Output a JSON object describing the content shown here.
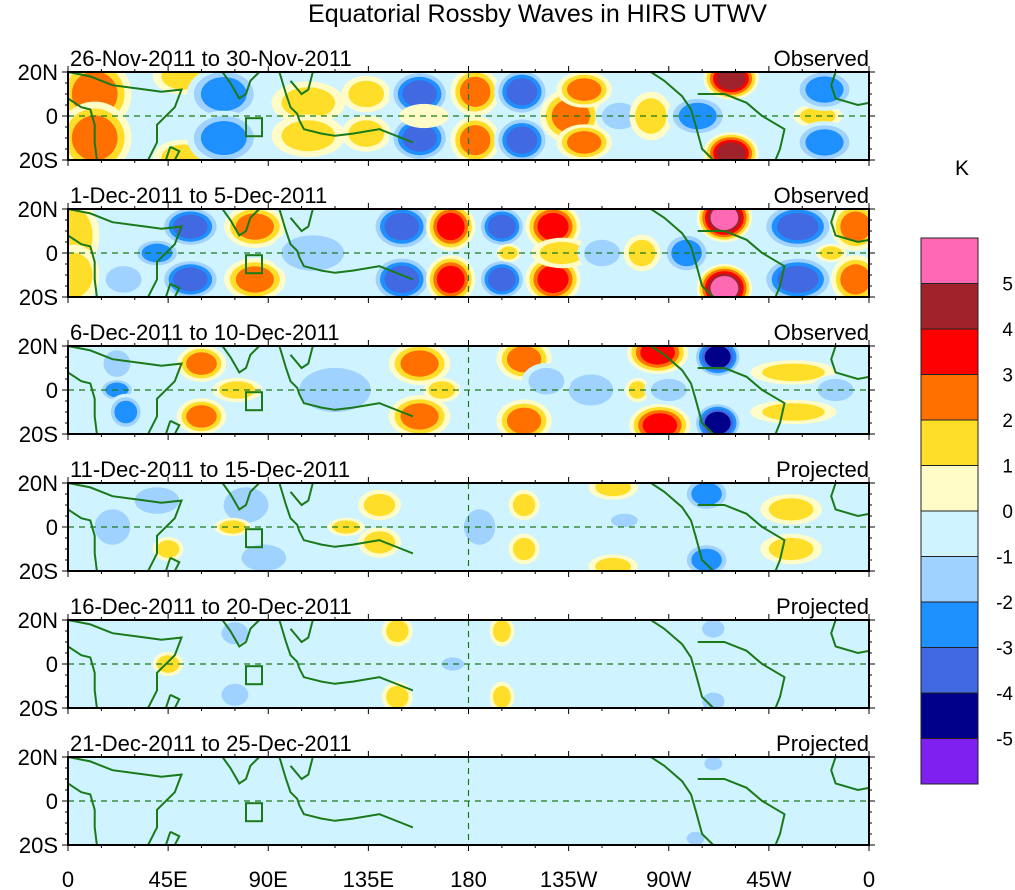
{
  "chart_data": {
    "type": "heatmap",
    "title": "Equatorial Rossby Waves in HIRS UTWV",
    "xlabel": "",
    "ylabel": "",
    "x_tick_labels": [
      "0",
      "45E",
      "90E",
      "135E",
      "180",
      "135W",
      "90W",
      "45W",
      "0"
    ],
    "x_tick_values_deg": [
      0,
      45,
      90,
      135,
      180,
      225,
      270,
      315,
      360
    ],
    "y_tick_labels": [
      "20N",
      "0",
      "20S"
    ],
    "y_tick_values_deg": [
      20,
      0,
      -20
    ],
    "xlim_deg": [
      0,
      360
    ],
    "ylim_deg": [
      -20,
      20
    ],
    "colorbar": {
      "unit": "K",
      "tick_labels": [
        "5",
        "4",
        "3",
        "2",
        "1",
        "0",
        "-1",
        "-2",
        "-3",
        "-4",
        "-5"
      ],
      "levels": [
        5,
        4,
        3,
        2,
        1,
        0,
        -1,
        -2,
        -3,
        -4,
        -5
      ],
      "colors": [
        "#ff69b4",
        "#a0222a",
        "#ff0000",
        "#ff7000",
        "#ffde2a",
        "#fffcc8",
        "#d0f4ff",
        "#a0d2ff",
        "#1e90ff",
        "#4169e1",
        "#00008b",
        "#8020f0"
      ]
    },
    "panels": [
      {
        "period": "26-Nov-2011 to 30-Nov-2011",
        "status": "Observed",
        "anomalies": [
          {
            "lon": 12,
            "lat": 10,
            "value": 2.2,
            "w": 12,
            "h": 12
          },
          {
            "lon": 12,
            "lat": -10,
            "value": 2.2,
            "w": 12,
            "h": 12
          },
          {
            "lon": 52,
            "lat": 18,
            "value": 2.0,
            "w": 10,
            "h": 6
          },
          {
            "lon": 52,
            "lat": -19,
            "value": 2.0,
            "w": 10,
            "h": 6
          },
          {
            "lon": 70,
            "lat": 10,
            "value": -2.6,
            "w": 12,
            "h": 9
          },
          {
            "lon": 70,
            "lat": -10,
            "value": -2.6,
            "w": 12,
            "h": 9
          },
          {
            "lon": 108,
            "lat": 6,
            "value": 1.4,
            "w": 12,
            "h": 7
          },
          {
            "lon": 108,
            "lat": -9,
            "value": 1.5,
            "w": 12,
            "h": 7
          },
          {
            "lon": 134,
            "lat": 10,
            "value": 1.2,
            "w": 8,
            "h": 6
          },
          {
            "lon": 134,
            "lat": -8,
            "value": 1.2,
            "w": 8,
            "h": 6
          },
          {
            "lon": 158,
            "lat": 10,
            "value": -3.2,
            "w": 10,
            "h": 8
          },
          {
            "lon": 158,
            "lat": -10,
            "value": -3.2,
            "w": 10,
            "h": 8
          },
          {
            "lon": 160,
            "lat": 0,
            "value": 1.0,
            "w": 8,
            "h": 4
          },
          {
            "lon": 183,
            "lat": 11,
            "value": 2.2,
            "w": 8,
            "h": 8
          },
          {
            "lon": 183,
            "lat": -11,
            "value": 2.2,
            "w": 8,
            "h": 8
          },
          {
            "lon": 204,
            "lat": 11,
            "value": -3.1,
            "w": 9,
            "h": 8
          },
          {
            "lon": 204,
            "lat": -11,
            "value": -3.1,
            "w": 9,
            "h": 8
          },
          {
            "lon": 226,
            "lat": 0,
            "value": 2.4,
            "w": 10,
            "h": 9
          },
          {
            "lon": 232,
            "lat": 12,
            "value": 2.1,
            "w": 9,
            "h": 6
          },
          {
            "lon": 232,
            "lat": -12,
            "value": 2.1,
            "w": 9,
            "h": 6
          },
          {
            "lon": 248,
            "lat": 0,
            "value": -1.6,
            "w": 8,
            "h": 6
          },
          {
            "lon": 262,
            "lat": 0,
            "value": 1.4,
            "w": 7,
            "h": 8
          },
          {
            "lon": 283,
            "lat": 0,
            "value": -2.1,
            "w": 10,
            "h": 7
          },
          {
            "lon": 298,
            "lat": 17,
            "value": 4.3,
            "w": 9,
            "h": 7
          },
          {
            "lon": 298,
            "lat": -17,
            "value": 4.3,
            "w": 9,
            "h": 7
          },
          {
            "lon": 337,
            "lat": 0,
            "value": 1.3,
            "w": 8,
            "h": 4
          },
          {
            "lon": 340,
            "lat": 12,
            "value": -2.4,
            "w": 10,
            "h": 7
          },
          {
            "lon": 340,
            "lat": -12,
            "value": -2.4,
            "w": 10,
            "h": 7
          }
        ]
      },
      {
        "period": "1-Dec-2011 to 5-Dec-2011",
        "status": "Observed",
        "anomalies": [
          {
            "lon": 3,
            "lat": 8,
            "value": 1.6,
            "w": 8,
            "h": 12
          },
          {
            "lon": 3,
            "lat": -10,
            "value": 1.6,
            "w": 8,
            "h": 10
          },
          {
            "lon": 25,
            "lat": -12,
            "value": -1.5,
            "w": 8,
            "h": 6
          },
          {
            "lon": 40,
            "lat": 0,
            "value": -2.2,
            "w": 8,
            "h": 5
          },
          {
            "lon": 55,
            "lat": 12,
            "value": -3.2,
            "w": 10,
            "h": 7
          },
          {
            "lon": 55,
            "lat": -12,
            "value": -3.2,
            "w": 10,
            "h": 7
          },
          {
            "lon": 84,
            "lat": 12,
            "value": 2.3,
            "w": 10,
            "h": 7
          },
          {
            "lon": 84,
            "lat": -12,
            "value": 2.3,
            "w": 10,
            "h": 7
          },
          {
            "lon": 110,
            "lat": 0,
            "value": -1.3,
            "w": 14,
            "h": 8
          },
          {
            "lon": 150,
            "lat": 12,
            "value": -3.2,
            "w": 10,
            "h": 8
          },
          {
            "lon": 150,
            "lat": -12,
            "value": -3.3,
            "w": 10,
            "h": 8
          },
          {
            "lon": 172,
            "lat": 12,
            "value": 3.2,
            "w": 8,
            "h": 8
          },
          {
            "lon": 172,
            "lat": -12,
            "value": 3.2,
            "w": 8,
            "h": 8
          },
          {
            "lon": 195,
            "lat": 12,
            "value": -3.1,
            "w": 8,
            "h": 7
          },
          {
            "lon": 195,
            "lat": -12,
            "value": -3.1,
            "w": 8,
            "h": 7
          },
          {
            "lon": 198,
            "lat": 0,
            "value": 2.0,
            "w": 4,
            "h": 3
          },
          {
            "lon": 218,
            "lat": 12,
            "value": 3.2,
            "w": 9,
            "h": 8
          },
          {
            "lon": 218,
            "lat": -12,
            "value": 3.2,
            "w": 9,
            "h": 8
          },
          {
            "lon": 222,
            "lat": 0,
            "value": 1.4,
            "w": 10,
            "h": 5
          },
          {
            "lon": 240,
            "lat": 0,
            "value": -1.4,
            "w": 8,
            "h": 6
          },
          {
            "lon": 258,
            "lat": 0,
            "value": 1.5,
            "w": 6,
            "h": 6
          },
          {
            "lon": 278,
            "lat": 0,
            "value": -3.0,
            "w": 8,
            "h": 7
          },
          {
            "lon": 295,
            "lat": 16,
            "value": 5.2,
            "w": 9,
            "h": 8
          },
          {
            "lon": 295,
            "lat": -16,
            "value": 5.2,
            "w": 9,
            "h": 8
          },
          {
            "lon": 328,
            "lat": 12,
            "value": -3.2,
            "w": 12,
            "h": 8
          },
          {
            "lon": 328,
            "lat": -12,
            "value": -3.2,
            "w": 12,
            "h": 8
          },
          {
            "lon": 354,
            "lat": 12,
            "value": 2.5,
            "w": 8,
            "h": 8
          },
          {
            "lon": 354,
            "lat": -12,
            "value": 2.5,
            "w": 8,
            "h": 8
          },
          {
            "lon": 343,
            "lat": 0,
            "value": 1.3,
            "w": 5,
            "h": 3
          }
        ]
      },
      {
        "period": "6-Dec-2011 to 10-Dec-2011",
        "status": "Observed",
        "anomalies": [
          {
            "lon": 22,
            "lat": 12,
            "value": -2.0,
            "w": 6,
            "h": 6
          },
          {
            "lon": 22,
            "lat": 0,
            "value": -2.5,
            "w": 6,
            "h": 4
          },
          {
            "lon": 26,
            "lat": -10,
            "value": -2.5,
            "w": 6,
            "h": 6
          },
          {
            "lon": 60,
            "lat": 12,
            "value": 2.3,
            "w": 8,
            "h": 6
          },
          {
            "lon": 60,
            "lat": -12,
            "value": 2.3,
            "w": 8,
            "h": 6
          },
          {
            "lon": 76,
            "lat": 0,
            "value": 1.2,
            "w": 8,
            "h": 4
          },
          {
            "lon": 120,
            "lat": 0,
            "value": -1.4,
            "w": 16,
            "h": 10
          },
          {
            "lon": 158,
            "lat": 12,
            "value": 2.3,
            "w": 10,
            "h": 7
          },
          {
            "lon": 158,
            "lat": -12,
            "value": 2.3,
            "w": 10,
            "h": 7
          },
          {
            "lon": 168,
            "lat": 0,
            "value": 1.2,
            "w": 6,
            "h": 4
          },
          {
            "lon": 205,
            "lat": 14,
            "value": 2.4,
            "w": 9,
            "h": 7
          },
          {
            "lon": 205,
            "lat": -14,
            "value": 2.4,
            "w": 9,
            "h": 7
          },
          {
            "lon": 235,
            "lat": 0,
            "value": -1.5,
            "w": 10,
            "h": 7
          },
          {
            "lon": 215,
            "lat": 4,
            "value": -1.5,
            "w": 8,
            "h": 6
          },
          {
            "lon": 256,
            "lat": 0,
            "value": 1.4,
            "w": 4,
            "h": 4
          },
          {
            "lon": 265,
            "lat": 17,
            "value": 3.3,
            "w": 10,
            "h": 7
          },
          {
            "lon": 266,
            "lat": -16,
            "value": 3.4,
            "w": 10,
            "h": 7
          },
          {
            "lon": 292,
            "lat": 15,
            "value": -4.4,
            "w": 8,
            "h": 7
          },
          {
            "lon": 292,
            "lat": -15,
            "value": -4.4,
            "w": 8,
            "h": 7
          },
          {
            "lon": 270,
            "lat": 0,
            "value": -1.4,
            "w": 8,
            "h": 5
          },
          {
            "lon": 326,
            "lat": 8,
            "value": 1.4,
            "w": 14,
            "h": 4
          },
          {
            "lon": 326,
            "lat": -10,
            "value": 1.4,
            "w": 14,
            "h": 4
          },
          {
            "lon": 345,
            "lat": 0,
            "value": -1.2,
            "w": 8,
            "h": 5
          }
        ]
      },
      {
        "period": "11-Dec-2011 to 15-Dec-2011",
        "status": "Projected",
        "anomalies": [
          {
            "lon": 20,
            "lat": 0,
            "value": -1.5,
            "w": 8,
            "h": 8
          },
          {
            "lon": 40,
            "lat": 12,
            "value": -1.4,
            "w": 10,
            "h": 6
          },
          {
            "lon": 45,
            "lat": -10,
            "value": 1.2,
            "w": 5,
            "h": 4
          },
          {
            "lon": 80,
            "lat": 10,
            "value": -1.3,
            "w": 10,
            "h": 8
          },
          {
            "lon": 88,
            "lat": -14,
            "value": -1.4,
            "w": 10,
            "h": 6
          },
          {
            "lon": 74,
            "lat": 0,
            "value": 1.2,
            "w": 6,
            "h": 3
          },
          {
            "lon": 140,
            "lat": 10,
            "value": 1.3,
            "w": 7,
            "h": 5
          },
          {
            "lon": 140,
            "lat": -7,
            "value": 1.4,
            "w": 7,
            "h": 5
          },
          {
            "lon": 125,
            "lat": 0,
            "value": 1.1,
            "w": 6,
            "h": 3
          },
          {
            "lon": 185,
            "lat": 0,
            "value": -1.6,
            "w": 7,
            "h": 8
          },
          {
            "lon": 205,
            "lat": 10,
            "value": 1.3,
            "w": 5,
            "h": 5
          },
          {
            "lon": 205,
            "lat": -10,
            "value": 1.3,
            "w": 5,
            "h": 5
          },
          {
            "lon": 245,
            "lat": 18,
            "value": 1.3,
            "w": 8,
            "h": 4
          },
          {
            "lon": 245,
            "lat": -18,
            "value": 1.3,
            "w": 8,
            "h": 4
          },
          {
            "lon": 287,
            "lat": 15,
            "value": -2.5,
            "w": 8,
            "h": 6
          },
          {
            "lon": 287,
            "lat": -15,
            "value": -2.5,
            "w": 8,
            "h": 6
          },
          {
            "lon": 250,
            "lat": 3,
            "value": -1.2,
            "w": 6,
            "h": 3
          },
          {
            "lon": 325,
            "lat": 8,
            "value": 1.1,
            "w": 10,
            "h": 5
          },
          {
            "lon": 325,
            "lat": -10,
            "value": 1.1,
            "w": 10,
            "h": 5
          }
        ]
      },
      {
        "period": "16-Dec-2011 to 20-Dec-2011",
        "status": "Projected",
        "anomalies": [
          {
            "lon": 5,
            "lat": 0,
            "value": -0.8,
            "w": 8,
            "h": 18
          },
          {
            "lon": 45,
            "lat": 0,
            "value": 1.3,
            "w": 5,
            "h": 4
          },
          {
            "lon": 75,
            "lat": 14,
            "value": -1.2,
            "w": 6,
            "h": 5
          },
          {
            "lon": 75,
            "lat": -14,
            "value": -1.2,
            "w": 6,
            "h": 5
          },
          {
            "lon": 115,
            "lat": -6,
            "value": -0.8,
            "w": 14,
            "h": 8
          },
          {
            "lon": 148,
            "lat": 15,
            "value": 1.3,
            "w": 5,
            "h": 5
          },
          {
            "lon": 148,
            "lat": -15,
            "value": 1.3,
            "w": 5,
            "h": 5
          },
          {
            "lon": 173,
            "lat": 0,
            "value": -1.2,
            "w": 5,
            "h": 3
          },
          {
            "lon": 195,
            "lat": 15,
            "value": 1.2,
            "w": 4,
            "h": 5
          },
          {
            "lon": 195,
            "lat": -15,
            "value": 1.2,
            "w": 4,
            "h": 5
          },
          {
            "lon": 235,
            "lat": 0,
            "value": -0.8,
            "w": 25,
            "h": 14
          },
          {
            "lon": 290,
            "lat": 16,
            "value": -1.2,
            "w": 5,
            "h": 4
          },
          {
            "lon": 290,
            "lat": -17,
            "value": -1.2,
            "w": 5,
            "h": 4
          },
          {
            "lon": 345,
            "lat": 8,
            "value": -0.8,
            "w": 12,
            "h": 6
          }
        ]
      },
      {
        "period": "21-Dec-2011 to 25-Dec-2011",
        "status": "Projected",
        "anomalies": [
          {
            "lon": 8,
            "lat": 0,
            "value": -0.6,
            "w": 14,
            "h": 14
          },
          {
            "lon": 42,
            "lat": 8,
            "value": -0.6,
            "w": 8,
            "h": 6
          },
          {
            "lon": 42,
            "lat": -8,
            "value": -0.6,
            "w": 8,
            "h": 6
          },
          {
            "lon": 130,
            "lat": 0,
            "value": -0.6,
            "w": 25,
            "h": 10
          },
          {
            "lon": 250,
            "lat": 0,
            "value": -0.6,
            "w": 35,
            "h": 20
          },
          {
            "lon": 290,
            "lat": 17,
            "value": -1.2,
            "w": 4,
            "h": 3
          },
          {
            "lon": 282,
            "lat": -17,
            "value": -1.2,
            "w": 4,
            "h": 3
          },
          {
            "lon": 345,
            "lat": 0,
            "value": -0.6,
            "w": 14,
            "h": 14
          }
        ]
      }
    ]
  }
}
